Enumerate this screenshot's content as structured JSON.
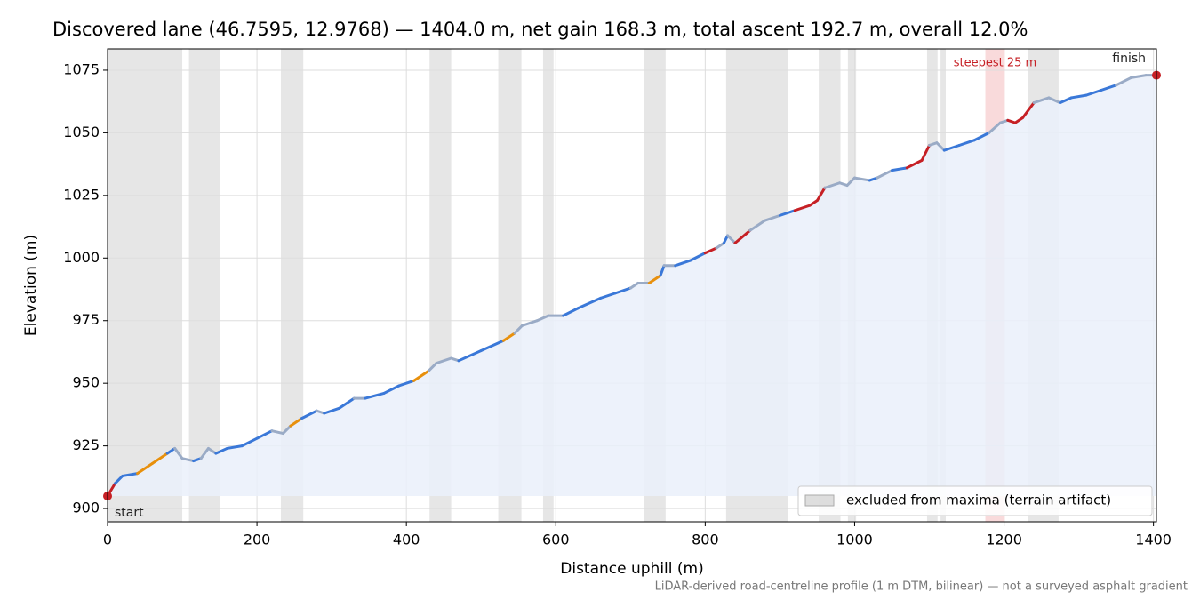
{
  "chart_data": {
    "type": "line",
    "title": "Discovered lane (46.7595, 12.9768) — 1404.0 m, net gain 168.3 m, total ascent 192.7 m, overall 12.0%",
    "x_label": "Distance uphill (m)",
    "y_label": "Elevation (m)",
    "footnote": "LiDAR-derived road-centreline profile (1 m DTM, bilinear) — not a surveyed asphalt gradient",
    "xlim": [
      0,
      1404
    ],
    "ylim": [
      894.7,
      1083.5
    ],
    "xticks": [
      0,
      200,
      400,
      600,
      800,
      1000,
      1200,
      1400
    ],
    "yticks": [
      900,
      925,
      950,
      975,
      1000,
      1025,
      1050,
      1075
    ],
    "grid": true,
    "x": [
      0,
      10,
      20,
      40,
      60,
      80,
      90,
      100,
      115,
      125,
      135,
      145,
      160,
      180,
      200,
      220,
      235,
      245,
      260,
      280,
      290,
      310,
      330,
      345,
      370,
      390,
      410,
      430,
      440,
      460,
      470,
      500,
      530,
      545,
      555,
      575,
      590,
      610,
      630,
      660,
      680,
      700,
      710,
      725,
      740,
      745,
      760,
      780,
      800,
      815,
      825,
      830,
      840,
      860,
      880,
      900,
      920,
      940,
      950,
      960,
      980,
      990,
      1000,
      1020,
      1030,
      1050,
      1070,
      1090,
      1100,
      1110,
      1120,
      1140,
      1160,
      1180,
      1195,
      1205,
      1215,
      1225,
      1240,
      1260,
      1275,
      1290,
      1310,
      1330,
      1350,
      1370,
      1390,
      1404
    ],
    "values": [
      905,
      910,
      913,
      914,
      918,
      922,
      924,
      920,
      919,
      920,
      924,
      922,
      924,
      925,
      928,
      931,
      930,
      933,
      936,
      939,
      938,
      940,
      944,
      944,
      946,
      949,
      951,
      955,
      958,
      960,
      959,
      963,
      967,
      970,
      973,
      975,
      977,
      977,
      980,
      984,
      986,
      988,
      990,
      990,
      993,
      997,
      997,
      999,
      1002,
      1004,
      1006,
      1009,
      1006,
      1011,
      1015,
      1017,
      1019,
      1021,
      1023,
      1028,
      1030,
      1029,
      1032,
      1031,
      1032,
      1035,
      1036,
      1039,
      1045,
      1046,
      1043,
      1045,
      1047,
      1050,
      1054,
      1055,
      1054,
      1056,
      1062,
      1064,
      1062,
      1064,
      1065,
      1067,
      1069,
      1072,
      1073,
      1073
    ],
    "colors": [
      "#c62025",
      "#3a78d8",
      "#3a78d8",
      "#e8900c",
      "#e8900c",
      "#3a78d8",
      "#9aabc6",
      "#9aabc6",
      "#3a78d8",
      "#9aabc6",
      "#9aabc6",
      "#3a78d8",
      "#3a78d8",
      "#3a78d8",
      "#3a78d8",
      "#9aabc6",
      "#9aabc6",
      "#e8900c",
      "#3a78d8",
      "#9aabc6",
      "#3a78d8",
      "#3a78d8",
      "#9aabc6",
      "#3a78d8",
      "#3a78d8",
      "#3a78d8",
      "#e8900c",
      "#9aabc6",
      "#9aabc6",
      "#9aabc6",
      "#3a78d8",
      "#3a78d8",
      "#e8900c",
      "#9aabc6",
      "#9aabc6",
      "#9aabc6",
      "#9aabc6",
      "#3a78d8",
      "#3a78d8",
      "#3a78d8",
      "#3a78d8",
      "#9aabc6",
      "#9aabc6",
      "#e8900c",
      "#3a78d8",
      "#9aabc6",
      "#3a78d8",
      "#3a78d8",
      "#c62025",
      "#9aabc6",
      "#3a78d8",
      "#9aabc6",
      "#c62025",
      "#9aabc6",
      "#9aabc6",
      "#3a78d8",
      "#c62025",
      "#c62025",
      "#c62025",
      "#9aabc6",
      "#9aabc6",
      "#9aabc6",
      "#9aabc6",
      "#3a78d8",
      "#9aabc6",
      "#3a78d8",
      "#c62025",
      "#c62025",
      "#9aabc6",
      "#9aabc6",
      "#3a78d8",
      "#3a78d8",
      "#3a78d8",
      "#9aabc6",
      "#9aabc6",
      "#c62025",
      "#c62025",
      "#c62025",
      "#9aabc6",
      "#9aabc6",
      "#3a78d8",
      "#3a78d8",
      "#3a78d8",
      "#3a78d8",
      "#9aabc6",
      "#9aabc6",
      "#9aabc6",
      "#c62025"
    ],
    "fill_color": "#eaf0fa",
    "excluded_label": "excluded from maxima (terrain artifact)",
    "excluded_color": "#c8c8c8",
    "excluded_ranges": [
      [
        0,
        100
      ],
      [
        109,
        150
      ],
      [
        232,
        262
      ],
      [
        431,
        460
      ],
      [
        523,
        554
      ],
      [
        583,
        597
      ],
      [
        718,
        747
      ],
      [
        828,
        911
      ],
      [
        952,
        981
      ],
      [
        991,
        1002
      ],
      [
        1097,
        1111
      ],
      [
        1115,
        1122
      ],
      [
        1232,
        1273
      ]
    ],
    "steepest": {
      "label": "steepest 25 m",
      "range": [
        1175,
        1201
      ],
      "color": "#f4b6b8"
    },
    "start_label": "start",
    "finish_label": "finish",
    "legend_position": "lower right"
  }
}
